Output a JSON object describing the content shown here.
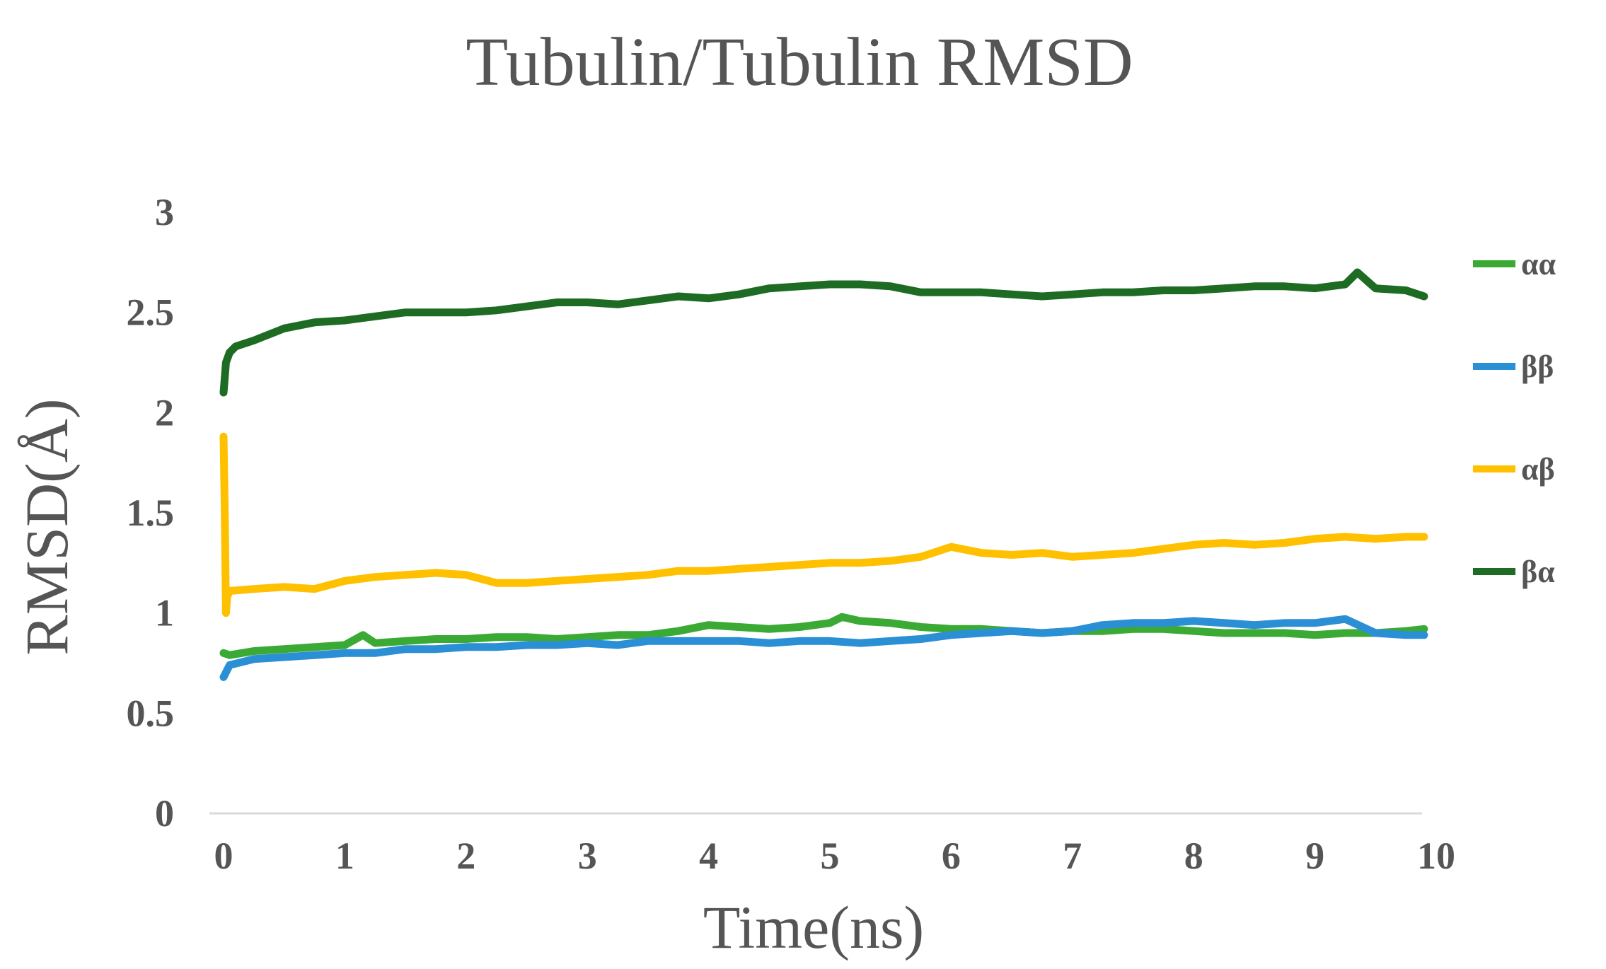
{
  "chart_data": {
    "type": "line",
    "title": "Tubulin/Tubulin RMSD",
    "xlabel": "Time(ns)",
    "ylabel": "RMSD(Å)",
    "xlim": [
      0,
      10
    ],
    "ylim": [
      0,
      3
    ],
    "xticks": [
      "0",
      "1",
      "2",
      "3",
      "4",
      "5",
      "6",
      "7",
      "8",
      "9",
      "10"
    ],
    "yticks": [
      "0",
      "0.5",
      "1",
      "1.5",
      "2",
      "2.5",
      "3"
    ],
    "grid": false,
    "legend_position": "right",
    "series": [
      {
        "name": "αα",
        "color": "#3aaa35",
        "x": [
          0,
          0.05,
          0.25,
          0.5,
          0.75,
          1.0,
          1.15,
          1.25,
          1.5,
          1.75,
          2.0,
          2.25,
          2.5,
          2.75,
          3.0,
          3.25,
          3.5,
          3.75,
          4.0,
          4.25,
          4.5,
          4.75,
          5.0,
          5.1,
          5.25,
          5.5,
          5.75,
          6.0,
          6.25,
          6.5,
          6.75,
          7.0,
          7.25,
          7.5,
          7.75,
          8.0,
          8.25,
          8.5,
          8.75,
          9.0,
          9.25,
          9.5,
          9.75,
          9.9
        ],
        "y": [
          0.8,
          0.79,
          0.81,
          0.82,
          0.83,
          0.84,
          0.89,
          0.85,
          0.86,
          0.87,
          0.87,
          0.88,
          0.88,
          0.87,
          0.88,
          0.89,
          0.89,
          0.91,
          0.94,
          0.93,
          0.92,
          0.93,
          0.95,
          0.98,
          0.96,
          0.95,
          0.93,
          0.92,
          0.92,
          0.91,
          0.9,
          0.91,
          0.91,
          0.92,
          0.92,
          0.91,
          0.9,
          0.9,
          0.9,
          0.89,
          0.9,
          0.9,
          0.91,
          0.92
        ]
      },
      {
        "name": "ββ",
        "color": "#2b8fd6",
        "x": [
          0,
          0.05,
          0.25,
          0.5,
          0.75,
          1.0,
          1.25,
          1.5,
          1.75,
          2.0,
          2.25,
          2.5,
          2.75,
          3.0,
          3.25,
          3.5,
          3.75,
          4.0,
          4.25,
          4.5,
          4.75,
          5.0,
          5.25,
          5.5,
          5.75,
          6.0,
          6.25,
          6.5,
          6.75,
          7.0,
          7.25,
          7.5,
          7.75,
          8.0,
          8.25,
          8.5,
          8.75,
          9.0,
          9.25,
          9.5,
          9.75,
          9.9
        ],
        "y": [
          0.68,
          0.74,
          0.77,
          0.78,
          0.79,
          0.8,
          0.8,
          0.82,
          0.82,
          0.83,
          0.83,
          0.84,
          0.84,
          0.85,
          0.84,
          0.86,
          0.86,
          0.86,
          0.86,
          0.85,
          0.86,
          0.86,
          0.85,
          0.86,
          0.87,
          0.89,
          0.9,
          0.91,
          0.9,
          0.91,
          0.94,
          0.95,
          0.95,
          0.96,
          0.95,
          0.94,
          0.95,
          0.95,
          0.97,
          0.9,
          0.89,
          0.89
        ]
      },
      {
        "name": "αβ",
        "color": "#ffc000",
        "x": [
          0,
          0.01,
          0.02,
          0.03,
          0.05,
          0.25,
          0.5,
          0.75,
          1.0,
          1.25,
          1.5,
          1.75,
          2.0,
          2.25,
          2.5,
          2.75,
          3.0,
          3.25,
          3.5,
          3.75,
          4.0,
          4.25,
          4.5,
          4.75,
          5.0,
          5.25,
          5.5,
          5.75,
          6.0,
          6.25,
          6.5,
          6.75,
          7.0,
          7.25,
          7.5,
          7.75,
          8.0,
          8.25,
          8.5,
          8.75,
          9.0,
          9.25,
          9.5,
          9.75,
          9.9
        ],
        "y": [
          1.88,
          1.5,
          1.0,
          1.08,
          1.11,
          1.12,
          1.13,
          1.12,
          1.16,
          1.18,
          1.19,
          1.2,
          1.19,
          1.15,
          1.15,
          1.16,
          1.17,
          1.18,
          1.19,
          1.21,
          1.21,
          1.22,
          1.23,
          1.24,
          1.25,
          1.25,
          1.26,
          1.28,
          1.33,
          1.3,
          1.29,
          1.3,
          1.28,
          1.29,
          1.3,
          1.32,
          1.34,
          1.35,
          1.34,
          1.35,
          1.37,
          1.38,
          1.37,
          1.38,
          1.38
        ]
      },
      {
        "name": "βα",
        "color": "#1e6b23",
        "x": [
          0,
          0.02,
          0.05,
          0.1,
          0.25,
          0.5,
          0.75,
          1.0,
          1.25,
          1.5,
          1.75,
          2.0,
          2.25,
          2.5,
          2.75,
          3.0,
          3.25,
          3.5,
          3.75,
          4.0,
          4.25,
          4.5,
          4.75,
          5.0,
          5.25,
          5.5,
          5.75,
          6.0,
          6.25,
          6.5,
          6.75,
          7.0,
          7.25,
          7.5,
          7.75,
          8.0,
          8.25,
          8.5,
          8.75,
          9.0,
          9.25,
          9.35,
          9.5,
          9.75,
          9.9
        ],
        "y": [
          2.1,
          2.25,
          2.3,
          2.33,
          2.36,
          2.42,
          2.45,
          2.46,
          2.48,
          2.5,
          2.5,
          2.5,
          2.51,
          2.53,
          2.55,
          2.55,
          2.54,
          2.56,
          2.58,
          2.57,
          2.59,
          2.62,
          2.63,
          2.64,
          2.64,
          2.63,
          2.6,
          2.6,
          2.6,
          2.59,
          2.58,
          2.59,
          2.6,
          2.6,
          2.61,
          2.61,
          2.62,
          2.63,
          2.63,
          2.62,
          2.64,
          2.7,
          2.62,
          2.61,
          2.58
        ]
      }
    ]
  }
}
